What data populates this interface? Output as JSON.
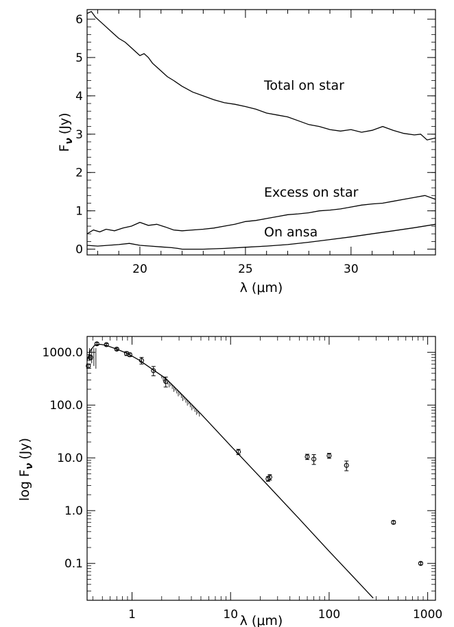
{
  "chart_data": [
    {
      "type": "line",
      "xlabel": "λ (μm)",
      "ylabel_main": "F",
      "ylabel_sub": "ν",
      "ylabel_unit": "(Jy)",
      "xlim": [
        17.5,
        34.0
      ],
      "ylim": [
        -0.15,
        6.25
      ],
      "xticks": [
        20,
        25,
        30
      ],
      "yticks": [
        0,
        1,
        2,
        3,
        4,
        5,
        6
      ],
      "annotations": [
        "Total on star",
        "Excess on star",
        "On ansa"
      ],
      "series": [
        {
          "x": [
            17.5,
            17.7,
            17.9,
            18.1,
            18.4,
            18.7,
            19.0,
            19.3,
            19.6,
            19.8,
            20.0,
            20.2,
            20.4,
            20.6,
            20.8,
            21.0,
            21.3,
            21.6,
            22.0,
            22.5,
            23.0,
            23.5,
            24.0,
            24.5,
            25.0,
            25.5,
            26.0,
            26.5,
            27.0,
            27.5,
            28.0,
            28.5,
            29.0,
            29.5,
            30.0,
            30.5,
            31.0,
            31.5,
            32.0,
            32.5,
            33.0,
            33.3,
            33.6,
            34.0
          ],
          "y": [
            6.15,
            6.2,
            6.05,
            5.95,
            5.8,
            5.65,
            5.5,
            5.4,
            5.25,
            5.15,
            5.05,
            5.1,
            5.0,
            4.85,
            4.75,
            4.65,
            4.5,
            4.4,
            4.25,
            4.1,
            4.0,
            3.9,
            3.82,
            3.78,
            3.72,
            3.65,
            3.55,
            3.5,
            3.45,
            3.35,
            3.25,
            3.2,
            3.12,
            3.08,
            3.12,
            3.05,
            3.1,
            3.2,
            3.1,
            3.02,
            2.98,
            3.0,
            2.85,
            2.9
          ]
        },
        {
          "x": [
            17.5,
            17.8,
            18.1,
            18.4,
            18.8,
            19.2,
            19.6,
            20.0,
            20.4,
            20.8,
            21.2,
            21.6,
            22.0,
            22.5,
            23.0,
            23.5,
            24.0,
            24.5,
            25.0,
            25.5,
            26.0,
            26.5,
            27.0,
            27.5,
            28.0,
            28.5,
            29.0,
            29.5,
            30.0,
            30.5,
            31.0,
            31.5,
            32.0,
            32.5,
            33.0,
            33.5,
            34.0
          ],
          "y": [
            0.4,
            0.5,
            0.45,
            0.52,
            0.48,
            0.55,
            0.6,
            0.7,
            0.62,
            0.65,
            0.58,
            0.5,
            0.48,
            0.5,
            0.52,
            0.55,
            0.6,
            0.65,
            0.72,
            0.75,
            0.8,
            0.85,
            0.9,
            0.92,
            0.95,
            1.0,
            1.02,
            1.05,
            1.1,
            1.15,
            1.18,
            1.2,
            1.25,
            1.3,
            1.35,
            1.4,
            1.3
          ]
        },
        {
          "x": [
            17.5,
            18.0,
            18.5,
            19.0,
            19.5,
            20.0,
            20.5,
            21.0,
            21.5,
            21.8,
            22.0,
            23.0,
            24.0,
            25.0,
            26.0,
            27.0,
            28.0,
            29.0,
            30.0,
            31.0,
            32.0,
            33.0,
            34.0
          ],
          "y": [
            0.1,
            0.08,
            0.1,
            0.12,
            0.15,
            0.1,
            0.08,
            0.06,
            0.04,
            0.02,
            0.0,
            0.0,
            0.02,
            0.05,
            0.08,
            0.12,
            0.18,
            0.25,
            0.32,
            0.4,
            0.48,
            0.56,
            0.65
          ]
        }
      ]
    },
    {
      "type": "scatter",
      "xlabel": "λ (μm)",
      "ylabel_main": "log F",
      "ylabel_sub": "ν",
      "ylabel_unit": "(Jy)",
      "xscale": "log",
      "yscale": "log",
      "xlim": [
        0.35,
        1200
      ],
      "ylim": [
        0.02,
        2000
      ],
      "xticks": [
        1,
        10,
        100,
        1000
      ],
      "xtick_labels": [
        "1",
        "10",
        "100",
        "1000"
      ],
      "yticks": [
        0.1,
        1,
        10,
        100,
        1000
      ],
      "ytick_labels": [
        "0.1",
        "1.0",
        "10.0",
        "100.0",
        "1000.0"
      ],
      "model_curve": {
        "x": [
          0.35,
          0.38,
          0.42,
          0.48,
          0.55,
          0.7,
          0.9,
          1.2,
          1.6,
          2.2,
          3.0,
          5.0,
          10.0,
          20.0,
          50.0,
          100.0,
          200.0,
          280.0
        ],
        "y": [
          700,
          1100,
          1380,
          1420,
          1350,
          1150,
          950,
          700,
          480,
          320,
          180,
          68,
          17,
          4.3,
          0.69,
          0.17,
          0.043,
          0.022
        ]
      },
      "points": [
        {
          "x": 0.36,
          "y": 550,
          "err": 50
        },
        {
          "x": 0.38,
          "y": 800,
          "err": 60
        },
        {
          "x": 0.44,
          "y": 1450,
          "err": 80
        },
        {
          "x": 0.55,
          "y": 1400,
          "err": 70
        },
        {
          "x": 0.7,
          "y": 1150,
          "err": 60
        },
        {
          "x": 0.88,
          "y": 950,
          "err": 80
        },
        {
          "x": 0.95,
          "y": 900,
          "err": 70
        },
        {
          "x": 1.25,
          "y": 700,
          "err": 100
        },
        {
          "x": 1.65,
          "y": 450,
          "err": 90
        },
        {
          "x": 2.2,
          "y": 280,
          "err": 60
        },
        {
          "x": 12,
          "y": 13,
          "err": 1.5
        },
        {
          "x": 25,
          "y": 4.3,
          "err": 0.5
        },
        {
          "x": 24,
          "y": 4.0,
          "err": 0.4
        },
        {
          "x": 60,
          "y": 10.5,
          "err": 1.2
        },
        {
          "x": 70,
          "y": 9.5,
          "err": 2.0
        },
        {
          "x": 100,
          "y": 11,
          "err": 1.2
        },
        {
          "x": 150,
          "y": 7.2,
          "err": 1.5
        },
        {
          "x": 450,
          "y": 0.6,
          "err": 0.04
        },
        {
          "x": 850,
          "y": 0.1,
          "err": 0.006
        }
      ]
    }
  ]
}
